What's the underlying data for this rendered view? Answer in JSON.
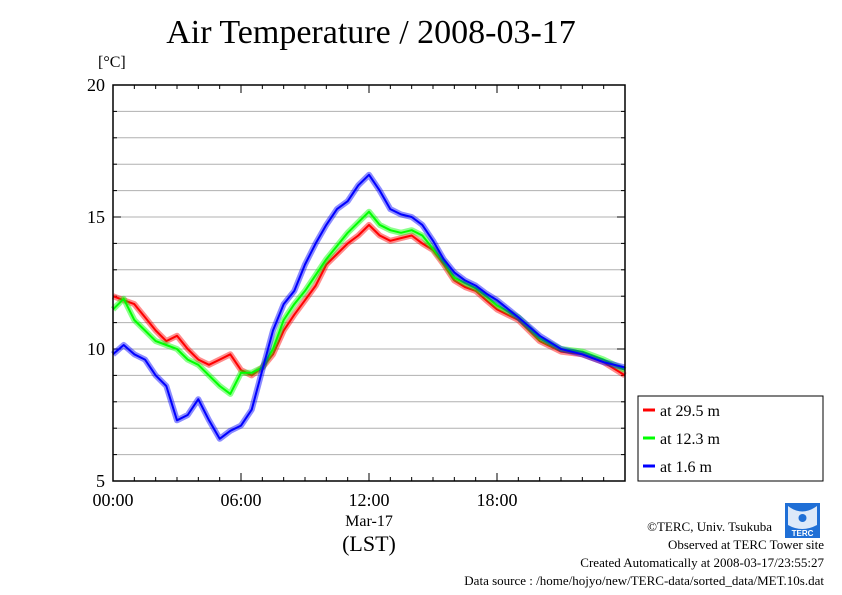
{
  "chart_data": {
    "type": "line",
    "title": "Air Temperature / 2008-03-17",
    "ylabel": "[°C]",
    "xlabel": "(LST)",
    "date_label": "Mar-17",
    "ylim": [
      5,
      20
    ],
    "xlim": [
      0,
      24
    ],
    "yticks": [
      "5",
      "10",
      "15",
      "20"
    ],
    "xticks": [
      {
        "v": 0,
        "label": "00:00"
      },
      {
        "v": 6,
        "label": "06:00"
      },
      {
        "v": 12,
        "label": "12:00"
      },
      {
        "v": 18,
        "label": "18:00"
      }
    ],
    "grid": true,
    "legend_position": "right-bottom",
    "x": [
      0,
      0.5,
      1,
      1.5,
      2,
      2.5,
      3,
      3.5,
      4,
      4.5,
      5,
      5.5,
      6,
      6.5,
      7,
      7.5,
      8,
      8.5,
      9,
      9.5,
      10,
      10.5,
      11,
      11.5,
      12,
      12.5,
      13,
      13.5,
      14,
      14.5,
      15,
      15.5,
      16,
      16.5,
      17,
      17.5,
      18,
      19,
      20,
      21,
      22,
      23,
      24
    ],
    "series": [
      {
        "name": "at 29.5 m",
        "color": "#ff0000",
        "values": [
          12.0,
          11.85,
          11.7,
          11.2,
          10.7,
          10.3,
          10.5,
          10.0,
          9.6,
          9.4,
          9.6,
          9.8,
          9.2,
          9.0,
          9.3,
          9.8,
          10.7,
          11.3,
          11.85,
          12.4,
          13.2,
          13.6,
          14.0,
          14.3,
          14.7,
          14.3,
          14.1,
          14.2,
          14.3,
          14.0,
          13.75,
          13.2,
          12.6,
          12.35,
          12.2,
          11.85,
          11.5,
          11.1,
          10.3,
          9.9,
          9.8,
          9.5,
          9.0
        ]
      },
      {
        "name": "at 12.3 m",
        "color": "#00ff00",
        "values": [
          11.5,
          11.9,
          11.1,
          10.7,
          10.3,
          10.15,
          10.0,
          9.6,
          9.4,
          9.0,
          8.6,
          8.3,
          9.1,
          9.1,
          9.3,
          10.0,
          11.1,
          11.7,
          12.2,
          12.8,
          13.4,
          13.9,
          14.4,
          14.8,
          15.2,
          14.7,
          14.5,
          14.4,
          14.5,
          14.3,
          13.8,
          13.3,
          12.7,
          12.5,
          12.3,
          12.0,
          11.65,
          11.2,
          10.4,
          10.0,
          9.9,
          9.6,
          9.2
        ]
      },
      {
        "name": "at 1.6 m",
        "color": "#0000ff",
        "values": [
          9.8,
          10.15,
          9.8,
          9.6,
          9.0,
          8.6,
          7.3,
          7.5,
          8.1,
          7.3,
          6.6,
          6.9,
          7.1,
          7.7,
          9.2,
          10.7,
          11.7,
          12.2,
          13.2,
          14.0,
          14.7,
          15.3,
          15.6,
          16.2,
          16.6,
          16.0,
          15.3,
          15.1,
          15.0,
          14.7,
          14.1,
          13.4,
          12.9,
          12.6,
          12.4,
          12.1,
          11.85,
          11.2,
          10.5,
          10.0,
          9.8,
          9.5,
          9.3
        ]
      }
    ]
  },
  "footer": {
    "copyright": "©TERC, Univ. Tsukuba",
    "site": "Observed at TERC Tower site",
    "created": "Created Automatically at 2008-03-17/23:55:27",
    "source": "Data source : /home/hojyo/new/TERC-data/sorted_data/MET.10s.dat",
    "logo_text": "TERC"
  }
}
